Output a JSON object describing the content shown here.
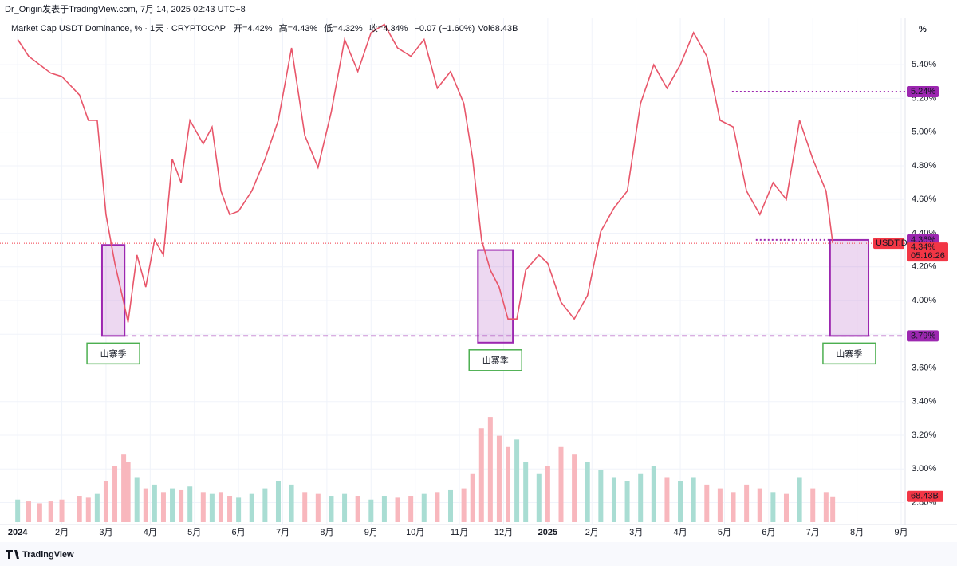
{
  "header": {
    "author_line": "Dr_Origin发表于TradingView.com, 7月 14, 2025 02:43 UTC+8",
    "footer": "TradingView"
  },
  "chart_data": {
    "type": "line",
    "title": "Market Cap USDT Dominance, % · 1天 · CRYPTOCAP",
    "ohlc_legend": [
      {
        "name": "开",
        "value": "=4.42%"
      },
      {
        "name": "高",
        "value": "=4.43%"
      },
      {
        "name": "低",
        "value": "=4.32%"
      },
      {
        "name": "收",
        "value": "=4.34%"
      }
    ],
    "change": "−0.07 (−1.60%)",
    "volume_legend": {
      "name": "Vol",
      "value": "68.43B"
    },
    "axis_unit": "%",
    "x": [
      0,
      0.25,
      0.5,
      0.75,
      1.0,
      1.4,
      1.6,
      1.8,
      2.0,
      2.2,
      2.4,
      2.5,
      2.7,
      2.9,
      3.1,
      3.3,
      3.5,
      3.7,
      3.9,
      4.2,
      4.4,
      4.6,
      4.8,
      5.0,
      5.3,
      5.6,
      5.9,
      6.2,
      6.5,
      6.8,
      7.1,
      7.4,
      7.7,
      8.0,
      8.3,
      8.6,
      8.9,
      9.2,
      9.5,
      9.8,
      10.1,
      10.3,
      10.5,
      10.7,
      10.9,
      11.1,
      11.3,
      11.5,
      11.8,
      12.0,
      12.3,
      12.6,
      12.9,
      13.2,
      13.5,
      13.8,
      14.1,
      14.4,
      14.7,
      15.0,
      15.3,
      15.6,
      15.9,
      16.2,
      16.5,
      16.8,
      17.1,
      17.4,
      17.7,
      18.0,
      18.3,
      18.45
    ],
    "series": [
      {
        "name": "USDT.D",
        "color": "#e8566a",
        "values": [
          5.55,
          5.45,
          5.4,
          5.35,
          5.33,
          5.22,
          5.07,
          5.07,
          4.51,
          4.22,
          3.99,
          3.87,
          4.27,
          4.08,
          4.36,
          4.27,
          4.84,
          4.7,
          5.07,
          4.93,
          5.03,
          4.65,
          4.51,
          4.53,
          4.65,
          4.84,
          5.07,
          5.5,
          4.98,
          4.79,
          5.12,
          5.55,
          5.36,
          5.59,
          5.64,
          5.5,
          5.45,
          5.55,
          5.26,
          5.36,
          5.17,
          4.84,
          4.36,
          4.18,
          4.08,
          3.89,
          3.89,
          4.18,
          4.27,
          4.22,
          3.99,
          3.89,
          4.03,
          4.41,
          4.55,
          4.65,
          5.17,
          5.4,
          5.26,
          5.4,
          5.59,
          5.45,
          5.07,
          5.03,
          4.65,
          4.51,
          4.7,
          4.6,
          5.07,
          4.84,
          4.65,
          4.34
        ]
      }
    ],
    "volume": {
      "color_up": "#a9ddd3",
      "color_down": "#f8b7bd",
      "ylim": [
        0,
        1350
      ],
      "values": [
        60,
        55,
        50,
        55,
        60,
        70,
        65,
        75,
        110,
        150,
        180,
        160,
        120,
        90,
        100,
        80,
        90,
        85,
        95,
        80,
        75,
        80,
        70,
        65,
        75,
        90,
        110,
        100,
        80,
        75,
        70,
        75,
        70,
        60,
        70,
        65,
        70,
        75,
        80,
        85,
        90,
        130,
        250,
        280,
        230,
        200,
        220,
        160,
        130,
        150,
        200,
        180,
        160,
        140,
        120,
        110,
        130,
        150,
        120,
        110,
        120,
        100,
        90,
        80,
        100,
        90,
        80,
        75,
        120,
        90,
        80,
        68.43
      ],
      "last_label": "68.43B"
    },
    "xlim": [
      -0.4,
      20.09
    ],
    "xticks": [
      {
        "value": 0,
        "label": "2024"
      },
      {
        "value": 1,
        "label": "2月"
      },
      {
        "value": 2,
        "label": "3月"
      },
      {
        "value": 3,
        "label": "4月"
      },
      {
        "value": 4,
        "label": "5月"
      },
      {
        "value": 5,
        "label": "6月"
      },
      {
        "value": 6,
        "label": "7月"
      },
      {
        "value": 7,
        "label": "8月"
      },
      {
        "value": 8,
        "label": "9月"
      },
      {
        "value": 9,
        "label": "10月"
      },
      {
        "value": 10,
        "label": "11月"
      },
      {
        "value": 11,
        "label": "12月"
      },
      {
        "value": 12,
        "label": "2025"
      },
      {
        "value": 13,
        "label": "2月"
      },
      {
        "value": 14,
        "label": "3月"
      },
      {
        "value": 15,
        "label": "4月"
      },
      {
        "value": 16,
        "label": "5月"
      },
      {
        "value": 17,
        "label": "6月"
      },
      {
        "value": 18,
        "label": "7月"
      },
      {
        "value": 19,
        "label": "8月"
      },
      {
        "value": 20,
        "label": "9月"
      }
    ],
    "ylim": [
      2.67,
      5.68
    ],
    "yticks": [
      {
        "value": 2.8,
        "label": "2.80%"
      },
      {
        "value": 3.0,
        "label": "3.00%"
      },
      {
        "value": 3.2,
        "label": "3.20%"
      },
      {
        "value": 3.4,
        "label": "3.40%"
      },
      {
        "value": 3.6,
        "label": "3.60%"
      },
      {
        "value": 3.8,
        "label": "3.80%"
      },
      {
        "value": 4.0,
        "label": "4.00%"
      },
      {
        "value": 4.2,
        "label": "4.20%"
      },
      {
        "value": 4.4,
        "label": "4.40%"
      },
      {
        "value": 4.6,
        "label": "4.60%"
      },
      {
        "value": 4.8,
        "label": "4.80%"
      },
      {
        "value": 5.0,
        "label": "5.00%"
      },
      {
        "value": 5.2,
        "label": "5.20%"
      },
      {
        "value": 5.4,
        "label": "5.40%"
      }
    ],
    "grid": true,
    "last": {
      "value": 4.34,
      "label": "4.34%",
      "symbol": "USDT.D",
      "countdown": "05:16:26",
      "color": "#f23645"
    },
    "levels": [
      {
        "value": 5.24,
        "label": "5.24%",
        "from": 16.17,
        "style": "dotted"
      },
      {
        "value": 4.36,
        "label": "4.36%",
        "from": 16.71,
        "to": 18.4,
        "style": "dotted"
      },
      {
        "value": 3.79,
        "label": "3.79%",
        "from": 2.4,
        "style": "dashed"
      }
    ],
    "level_color": "#9c27b0",
    "zones": [
      {
        "from": 1.91,
        "to": 2.42,
        "top": 4.33,
        "bottom": 3.79,
        "label": "山寨季"
      },
      {
        "from": 10.42,
        "to": 11.21,
        "top": 4.3,
        "bottom": 3.75,
        "label": "山寨季"
      },
      {
        "from": 18.39,
        "to": 19.26,
        "top": 4.36,
        "bottom": 3.79,
        "label": "山寨季"
      }
    ]
  }
}
